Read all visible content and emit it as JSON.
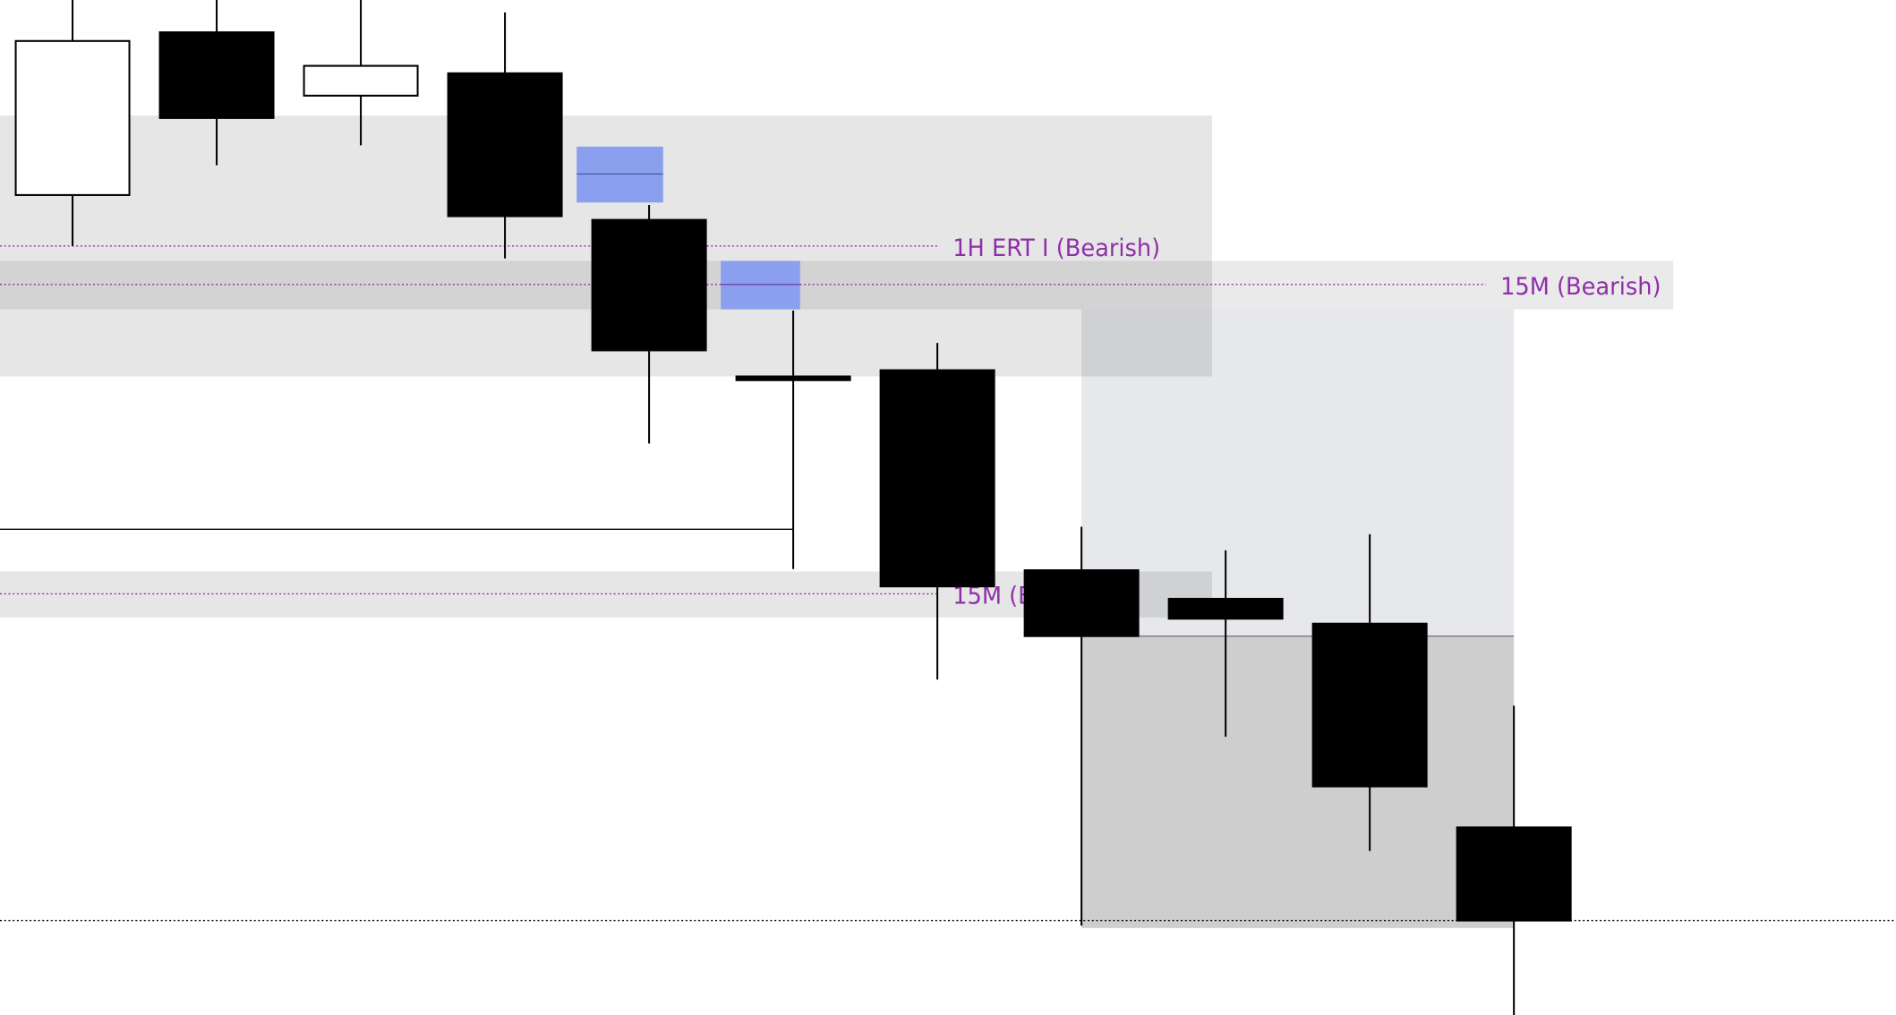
{
  "chart_data": {
    "type": "candlestick",
    "title": "",
    "xlabel": "",
    "ylabel": "",
    "grid": false,
    "ylim": [
      0,
      817
    ],
    "candles": [
      {
        "o": 660,
        "h": 817,
        "l": 619,
        "c": 784
      },
      {
        "o": 791,
        "h": 817,
        "l": 684,
        "c": 722
      },
      {
        "o": 740,
        "h": 817,
        "l": 700,
        "c": 764
      },
      {
        "o": 758,
        "h": 807,
        "l": 609,
        "c": 643
      },
      {
        "o": 640,
        "h": 652,
        "l": 460,
        "c": 535
      },
      {
        "o": 514,
        "h": 567,
        "l": 359,
        "c": 513
      },
      {
        "o": 519,
        "h": 541,
        "l": 270,
        "c": 345
      },
      {
        "o": 358,
        "h": 393,
        "l": 72,
        "c": 305
      },
      {
        "o": 335,
        "h": 374,
        "l": 224,
        "c": 319
      },
      {
        "o": 315,
        "h": 387,
        "l": 132,
        "c": 184
      },
      {
        "o": 151,
        "h": 249,
        "l": 0,
        "c": 76
      }
    ],
    "zones": [
      {
        "from_candle": 0,
        "to_candle": 8.3,
        "top": 724,
        "bottom": 514,
        "color": "#e6e6e6"
      },
      {
        "from_candle": 0,
        "to_candle": 11.5,
        "top": 607,
        "bottom": 568,
        "color": "#e6e6e6",
        "label_index": 1
      },
      {
        "from_candle": 0,
        "to_candle": 8.3,
        "top": 357,
        "bottom": 320,
        "color": "#e6e6e6",
        "label_index": 2
      },
      {
        "from_candle": 7,
        "to_candle": 10,
        "top": 568,
        "bottom": 305,
        "color": "#e7e8ec"
      },
      {
        "from_candle": 7,
        "to_candle": 10,
        "top": 305,
        "bottom": 70,
        "color": "#cecece"
      }
    ],
    "fvg": [
      {
        "from_candle": 3.5,
        "to_candle": 4.1,
        "top": 699,
        "bottom": 654,
        "mid": 677,
        "color": "#8aa0ee"
      },
      {
        "from_candle": 4.5,
        "to_candle": 5.05,
        "top": 607,
        "bottom": 568,
        "mid": 588,
        "color": "#8aa0ee"
      }
    ],
    "levels": [
      {
        "price": 619,
        "style": "dotted",
        "color": "#9c27b0",
        "label": "1H ERT I (Bearish)",
        "end_candle": 6.4
      },
      {
        "price": 588,
        "style": "dotted",
        "color": "#9c27b0",
        "label": "15M (Bearish)",
        "end_candle": 10.2
      },
      {
        "price": 339,
        "style": "dotted",
        "color": "#9c27b0",
        "label": "15M (Bearish)",
        "end_candle": 6.4
      },
      {
        "price": 391,
        "style": "solid",
        "color": "#000000",
        "label": "",
        "end_candle": 5
      },
      {
        "price": 76,
        "style": "dotted",
        "color": "#000000",
        "label": "",
        "end_candle": 13
      }
    ],
    "colors": {
      "bull_body": "#ffffff",
      "bear_body": "#000000",
      "wick": "#000000"
    }
  }
}
